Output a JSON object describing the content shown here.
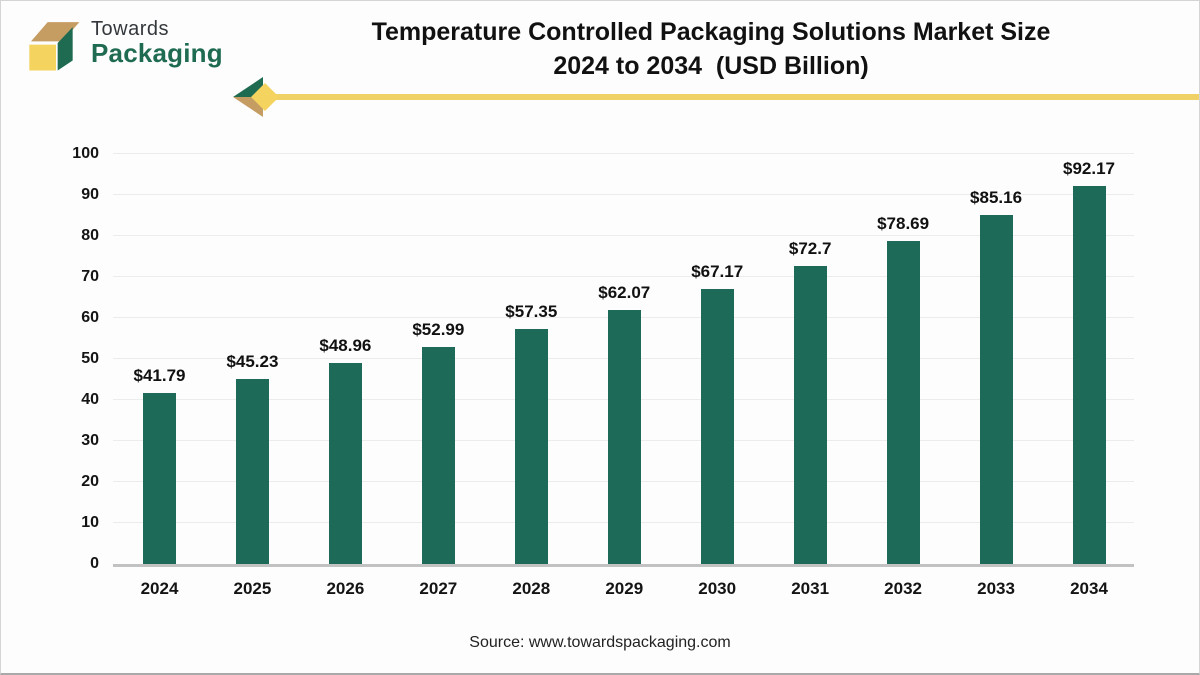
{
  "brand": {
    "word1": "Towards",
    "word2": "Packaging"
  },
  "header": {
    "title_line1": "Temperature Controlled Packaging Solutions Market Size",
    "title_line2": "2024 to 2034  (USD Billion)"
  },
  "footer": {
    "source": "Source: www.towardspackaging.com"
  },
  "colors": {
    "bar": "#1D6A59",
    "brand_green": "#1F6B52",
    "brand_yellow": "#F4D35E",
    "brand_tan": "#C59D63",
    "divider_yellow": "#F0D165",
    "gridline": "#ececec",
    "axis_line": "#c2c2c2"
  },
  "chart_data": {
    "type": "bar",
    "title": "Temperature Controlled Packaging Solutions Market Size 2024 to 2034 (USD Billion)",
    "categories": [
      "2024",
      "2025",
      "2026",
      "2027",
      "2028",
      "2029",
      "2030",
      "2031",
      "2032",
      "2033",
      "2034"
    ],
    "values": [
      41.79,
      45.23,
      48.96,
      52.99,
      57.35,
      62.07,
      67.17,
      72.7,
      78.69,
      85.16,
      92.17
    ],
    "value_labels": [
      "$41.79",
      "$45.23",
      "$48.96",
      "$52.99",
      "$57.35",
      "$62.07",
      "$67.17",
      "$72.7",
      "$78.69",
      "$85.16",
      "$92.17"
    ],
    "xlabel": "",
    "ylabel": "",
    "ylim": [
      0,
      100
    ],
    "yticks": [
      0,
      10,
      20,
      30,
      40,
      50,
      60,
      70,
      80,
      90,
      100
    ],
    "grid": "horizontal",
    "legend": "none",
    "bar_color": "#1D6A59"
  }
}
